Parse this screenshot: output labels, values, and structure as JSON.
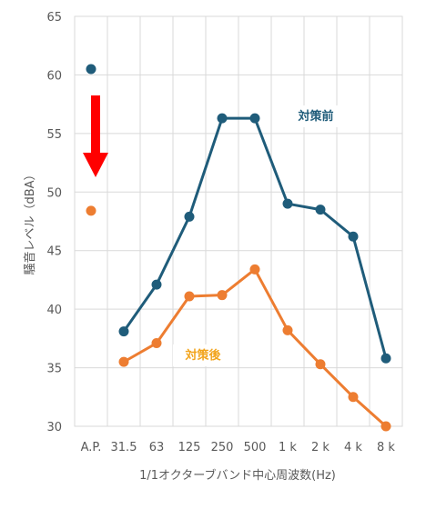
{
  "chart_data": {
    "type": "line",
    "categories": [
      "A.P.",
      "31.5",
      "63",
      "125",
      "250",
      "500",
      "1 k",
      "2 k",
      "4 k",
      "8 k"
    ],
    "series": [
      {
        "name": "対策前",
        "values": [
          60.5,
          38.1,
          42.1,
          47.9,
          56.3,
          56.3,
          49.0,
          48.5,
          46.2,
          35.8
        ],
        "color": "#1f5c7a"
      },
      {
        "name": "対策後",
        "values": [
          48.4,
          35.5,
          37.1,
          41.1,
          41.2,
          43.4,
          38.2,
          35.3,
          32.5,
          30.0
        ],
        "color": "#ed7d31"
      }
    ],
    "connected_from_index": 1,
    "xlabel": "1/1オクターブバンド中心周波数(Hz)",
    "ylabel": "騒音レベル（dBA）",
    "ylim": [
      30,
      65
    ],
    "yticks": [
      30,
      35,
      40,
      45,
      50,
      55,
      60,
      65
    ],
    "grid": {
      "horizontal": true,
      "vertical": true
    },
    "annotation": {
      "type": "arrow",
      "direction": "down",
      "color": "#ff0000"
    }
  }
}
